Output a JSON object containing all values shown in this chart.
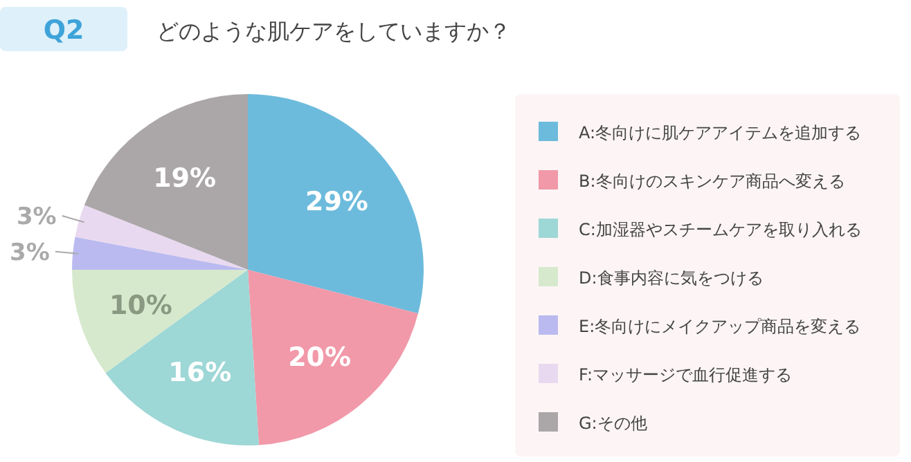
{
  "chart_data": {
    "type": "pie",
    "title": "どのような肌ケアをしていますか？",
    "annotations": [
      "Q2"
    ],
    "categories": [
      "A:冬向けに肌ケアアイテムを追加する",
      "B:冬向けのスキンケア商品へ変える",
      "C:加湿器やスチームケアを取り入れる",
      "D:食事内容に気をつける",
      "E:冬向けにメイクアップ商品を変える",
      "F:マッサージで血行促進する",
      "G:その他"
    ],
    "values": [
      29,
      20,
      16,
      10,
      3,
      3,
      19
    ],
    "value_labels": [
      "29%",
      "20%",
      "16%",
      "10%",
      "3%",
      "3%",
      "19%"
    ],
    "colors": [
      "#6dbbdc",
      "#f199a9",
      "#9dd7d6",
      "#d6e9cd",
      "#babaf0",
      "#e9d9f0",
      "#aba7a9"
    ],
    "legend": "right"
  }
}
